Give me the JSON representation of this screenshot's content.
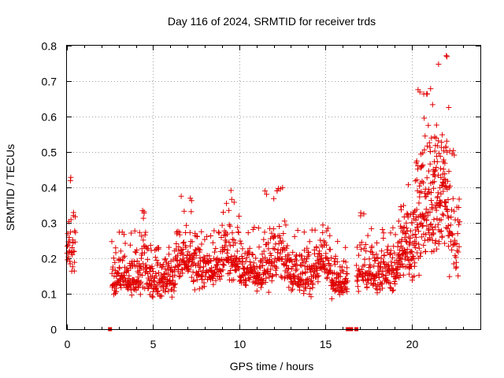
{
  "chart_data": {
    "type": "scatter",
    "title": "Day 116 of 2024, SRMTID for receiver trds",
    "xlabel": "GPS time / hours",
    "ylabel": "SRMTID / TECUs",
    "xlim": [
      0,
      24
    ],
    "ylim": [
      0,
      0.8
    ],
    "x_ticks": [
      0,
      5,
      10,
      15,
      20
    ],
    "x_tick_labels": [
      "0",
      "5",
      "10",
      "15",
      "20"
    ],
    "y_ticks": [
      0,
      0.1,
      0.2,
      0.3,
      0.4,
      0.5,
      0.6,
      0.7,
      0.8
    ],
    "y_tick_labels": [
      "0",
      "0.1",
      "0.2",
      "0.3",
      "0.4",
      "0.5",
      "0.6",
      "0.7",
      "0.8"
    ],
    "grid": true,
    "marker": "+",
    "color": "#e00000",
    "series": [
      {
        "name": "SRMTID",
        "segments": [
          {
            "start": 0.0,
            "end": 0.5,
            "points": 36,
            "min": 0.13,
            "max": 0.43,
            "mean": 0.24
          },
          {
            "start": 2.6,
            "end": 4.3,
            "points": 140,
            "min": 0.08,
            "max": 0.28,
            "mean": 0.14
          },
          {
            "start": 4.3,
            "end": 4.6,
            "points": 25,
            "min": 0.1,
            "max": 0.34,
            "mean": 0.2
          },
          {
            "start": 4.6,
            "end": 6.3,
            "points": 140,
            "min": 0.07,
            "max": 0.24,
            "mean": 0.14
          },
          {
            "start": 6.3,
            "end": 7.3,
            "points": 80,
            "min": 0.12,
            "max": 0.38,
            "mean": 0.2
          },
          {
            "start": 7.3,
            "end": 9.0,
            "points": 130,
            "min": 0.1,
            "max": 0.28,
            "mean": 0.17
          },
          {
            "start": 9.0,
            "end": 10.0,
            "points": 80,
            "min": 0.12,
            "max": 0.41,
            "mean": 0.2
          },
          {
            "start": 10.0,
            "end": 11.5,
            "points": 120,
            "min": 0.1,
            "max": 0.29,
            "mean": 0.16
          },
          {
            "start": 11.5,
            "end": 12.8,
            "points": 100,
            "min": 0.08,
            "max": 0.4,
            "mean": 0.2
          },
          {
            "start": 12.8,
            "end": 14.3,
            "points": 120,
            "min": 0.07,
            "max": 0.28,
            "mean": 0.15
          },
          {
            "start": 14.3,
            "end": 15.3,
            "points": 80,
            "min": 0.11,
            "max": 0.3,
            "mean": 0.18
          },
          {
            "start": 15.3,
            "end": 16.3,
            "points": 80,
            "min": 0.08,
            "max": 0.25,
            "mean": 0.14
          },
          {
            "start": 16.8,
            "end": 17.4,
            "points": 40,
            "min": 0.08,
            "max": 0.33,
            "mean": 0.16
          },
          {
            "start": 17.4,
            "end": 19.2,
            "points": 140,
            "min": 0.09,
            "max": 0.29,
            "mean": 0.16
          },
          {
            "start": 19.2,
            "end": 20.2,
            "points": 100,
            "min": 0.11,
            "max": 0.42,
            "mean": 0.22
          },
          {
            "start": 20.2,
            "end": 21.2,
            "points": 110,
            "min": 0.14,
            "max": 0.68,
            "mean": 0.32
          },
          {
            "start": 21.2,
            "end": 22.2,
            "points": 120,
            "min": 0.12,
            "max": 0.78,
            "mean": 0.38
          },
          {
            "start": 22.2,
            "end": 22.8,
            "points": 40,
            "min": 0.1,
            "max": 0.51,
            "mean": 0.26
          }
        ]
      }
    ],
    "zero_markers": {
      "symbol": "square",
      "x": [
        2.5,
        16.3,
        16.5,
        16.8
      ],
      "y": 0
    }
  }
}
